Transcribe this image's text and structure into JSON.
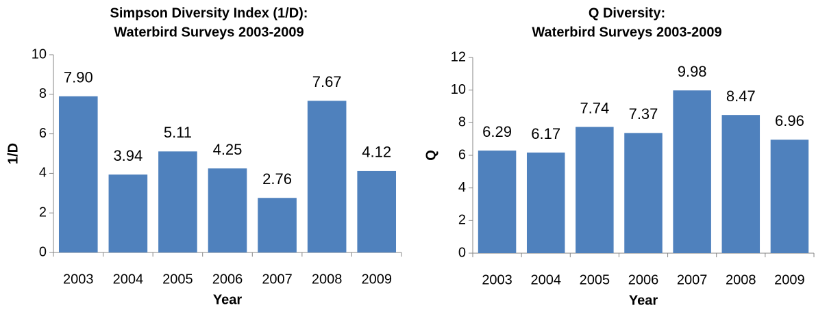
{
  "chart_data": [
    {
      "type": "bar",
      "title": [
        "Simpson Diversity Index (1/D):",
        "Waterbird Surveys 2003-2009"
      ],
      "x_label": "Year",
      "y_label": "1/D",
      "categories": [
        "2003",
        "2004",
        "2005",
        "2006",
        "2007",
        "2008",
        "2009"
      ],
      "values": [
        7.9,
        3.94,
        5.11,
        4.25,
        2.76,
        7.67,
        4.12
      ],
      "value_labels": [
        "7.90",
        "3.94",
        "5.11",
        "4.25",
        "2.76",
        "7.67",
        "4.12"
      ],
      "color": "#4f81bd",
      "ylim": [
        0,
        10
      ],
      "yticks": [
        0,
        2,
        4,
        6,
        8,
        10
      ],
      "grid": false
    },
    {
      "type": "bar",
      "title": [
        "Q Diversity:",
        "Waterbird Surveys 2003-2009"
      ],
      "x_label": "Year",
      "y_label": "Q",
      "categories": [
        "2003",
        "2004",
        "2005",
        "2006",
        "2007",
        "2008",
        "2009"
      ],
      "values": [
        6.29,
        6.17,
        7.74,
        7.37,
        9.98,
        8.47,
        6.96
      ],
      "color": "#4f81bd",
      "ylim": [
        0,
        12
      ],
      "yticks": [
        0,
        2,
        4,
        6,
        8,
        10,
        12
      ],
      "grid": false
    }
  ]
}
